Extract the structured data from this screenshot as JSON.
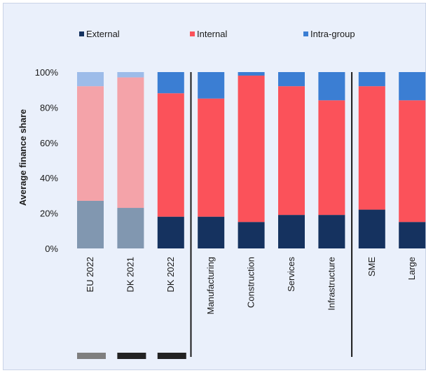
{
  "chart_data": {
    "type": "bar",
    "stacked": true,
    "percent": true,
    "ylabel": "Average finance share",
    "ylim": [
      0,
      100
    ],
    "yticks": [
      "0%",
      "20%",
      "40%",
      "60%",
      "80%",
      "100%"
    ],
    "legend_position": "top",
    "categories": [
      "EU 2022",
      "DK 2021",
      "DK 2022",
      "Manufacturing",
      "Construction",
      "Services",
      "Infrastructure",
      "SME",
      "Large"
    ],
    "series": [
      {
        "name": "External",
        "values": [
          27,
          23,
          18,
          18,
          15,
          19,
          19,
          22,
          15
        ]
      },
      {
        "name": "Internal",
        "values": [
          65,
          74,
          70,
          67,
          83,
          73,
          65,
          70,
          69
        ]
      },
      {
        "name": "Intra-group",
        "values": [
          8,
          3,
          12,
          15,
          2,
          8,
          16,
          8,
          16
        ]
      }
    ],
    "colors": {
      "External": "#15325f",
      "Internal": "#fb525a",
      "Intra-group": "#3b7ed3",
      "External_muted": "#8197b0",
      "Internal_muted": "#f4a3a9",
      "Intra-group_muted": "#9dbce9",
      "footer_gray": "#7f7f7f",
      "footer_dark": "#222222"
    },
    "muted_categories": [
      "EU 2022",
      "DK 2021"
    ],
    "group_separators_after": [
      "DK 2022",
      "Infrastructure"
    ]
  }
}
